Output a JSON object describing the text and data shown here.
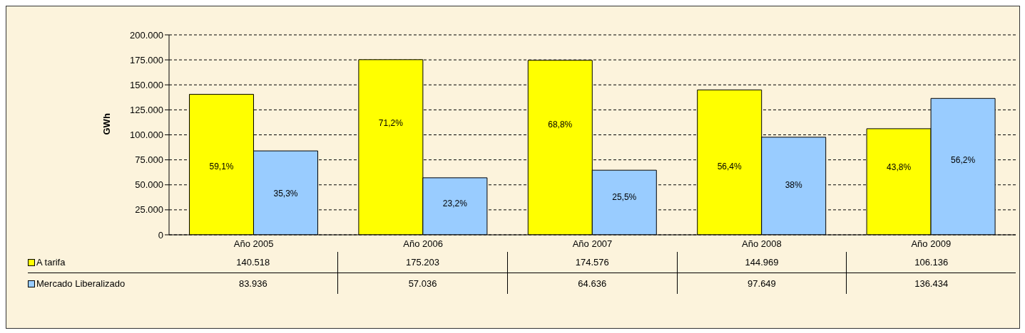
{
  "chart_data": {
    "type": "bar",
    "ylabel": "GWh",
    "categories": [
      "Año 2005",
      "Año 2006",
      "Año 2007",
      "Año 2008",
      "Año 2009"
    ],
    "series": [
      {
        "name": "A tarifa",
        "color": "#ffff00",
        "values": [
          140518,
          175203,
          174576,
          144969,
          106136
        ],
        "value_labels": [
          "140.518",
          "175.203",
          "174.576",
          "144.969",
          "106.136"
        ]
      },
      {
        "name": "Mercado Liberalizado",
        "color": "#99ccff",
        "values": [
          83936,
          57036,
          64636,
          97649,
          136434
        ],
        "value_labels": [
          "83.936",
          "57.036",
          "64.636",
          "97.649",
          "136.434"
        ]
      }
    ],
    "annotations": [
      {
        "text": "59,1%",
        "x": "Año 2005",
        "y": 68000
      },
      {
        "text": "71,2%",
        "x": "Año 2006",
        "y": 111000
      },
      {
        "text": "68,8%",
        "x": "Año 2007",
        "y": 110000
      },
      {
        "text": "56,4%",
        "x": "Año 2008",
        "y": 68000
      },
      {
        "text": "43,8%",
        "x": "Año 2009",
        "y": 67000
      },
      {
        "text": "35,3%",
        "x": "Año 2005",
        "y": 41000
      },
      {
        "text": "23,2%",
        "x": "Año 2006",
        "y": 31000
      },
      {
        "text": "25,5%",
        "x": "Año 2007",
        "y": 37000
      },
      {
        "text": "38%",
        "x": "Año 2008",
        "y": 49000
      },
      {
        "text": "56,2%",
        "x": "Año 2009",
        "y": 74000
      }
    ],
    "ylim": [
      0,
      200000
    ],
    "yticks": [
      {
        "value": 0,
        "label": "0"
      },
      {
        "value": 25000,
        "label": "25.000"
      },
      {
        "value": 50000,
        "label": "50.000"
      },
      {
        "value": 75000,
        "label": "75.000"
      },
      {
        "value": 100000,
        "label": "100.000"
      },
      {
        "value": 125000,
        "label": "125.000"
      },
      {
        "value": 150000,
        "label": "150.000"
      },
      {
        "value": 175000,
        "label": "175.000"
      },
      {
        "value": 200000,
        "label": "200.000"
      }
    ],
    "grid": "y",
    "legend": "bottom"
  }
}
